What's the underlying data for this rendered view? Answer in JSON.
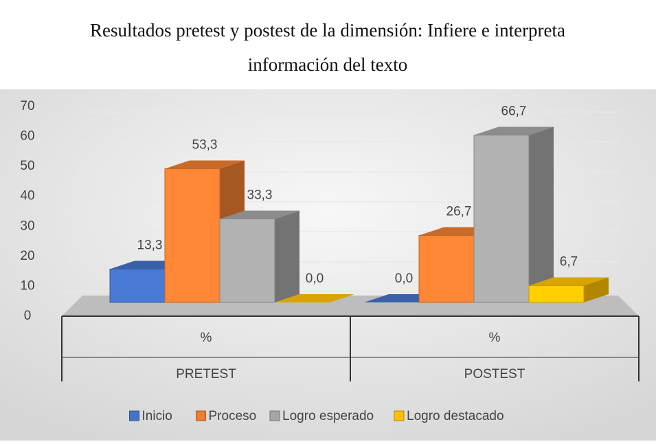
{
  "chart_data": {
    "type": "bar3d",
    "title": "Resultados pretest y postest de la dimensión: Infiere e interpreta información del texto",
    "categories": [
      "%",
      "%"
    ],
    "groups": [
      "PRETEST",
      "POSTEST"
    ],
    "series": [
      {
        "name": "Inicio",
        "color": "#4472c4",
        "values": [
          13.3,
          0.0
        ],
        "value_labels": [
          "13,3",
          "0,0"
        ]
      },
      {
        "name": "Proceso",
        "color": "#ed7d31",
        "values": [
          53.3,
          26.7
        ],
        "value_labels": [
          "53,3",
          "26,7"
        ]
      },
      {
        "name": "Logro esperado",
        "color": "#a5a5a5",
        "values": [
          33.3,
          66.7
        ],
        "value_labels": [
          "33,3",
          "66,7"
        ]
      },
      {
        "name": "Logro destacado",
        "color": "#ffc000",
        "values": [
          0.0,
          6.7
        ],
        "value_labels": [
          "0,0",
          "6,7"
        ]
      }
    ],
    "ylim": [
      0,
      70
    ],
    "yticks": [
      0,
      10,
      20,
      30,
      40,
      50,
      60,
      70
    ],
    "grid": true,
    "legend": "bottom"
  }
}
